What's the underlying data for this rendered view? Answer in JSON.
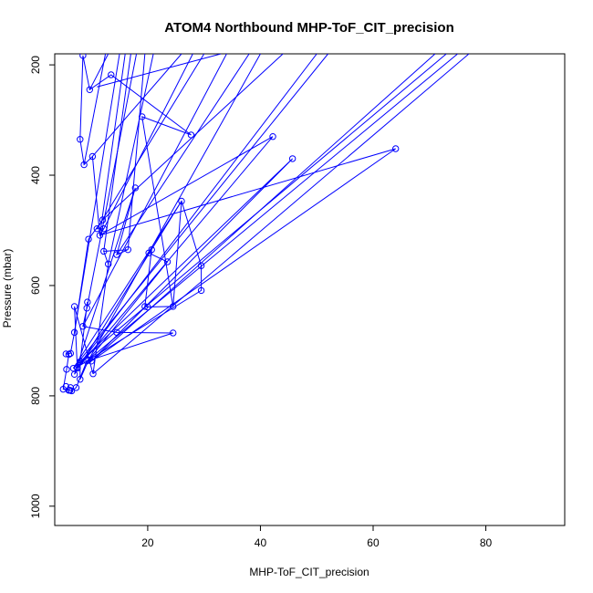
{
  "chart_data": {
    "type": "line",
    "title": "ATOM4 Northbound MHP-ToF_CIT_precision",
    "xlabel": "MHP-ToF_CIT_precision",
    "ylabel": "Pressure (mbar)",
    "xlim": [
      3.5,
      94
    ],
    "ylim": [
      1035,
      180
    ],
    "y_reversed": true,
    "x_ticks": [
      20,
      40,
      60,
      80
    ],
    "y_ticks": [
      200,
      400,
      600,
      800,
      1000
    ],
    "grid": false,
    "legend": "none",
    "colors": {
      "series": "#0000ff",
      "axis": "#000000"
    },
    "series": [
      {
        "points": [
          [
            8.5,
            183
          ],
          [
            13.5,
            218
          ],
          [
            9.7,
            245
          ],
          [
            19,
            294
          ],
          [
            27.7,
            327
          ],
          [
            42.2,
            330
          ],
          [
            8,
            335
          ],
          [
            64,
            352
          ],
          [
            45.7,
            370
          ],
          [
            8.7,
            381
          ],
          [
            10.2,
            366
          ],
          [
            17.8,
            423
          ],
          [
            26,
            447
          ],
          [
            12,
            481
          ],
          [
            11,
            497
          ],
          [
            12.2,
            497
          ],
          [
            11.5,
            509
          ],
          [
            9.5,
            516
          ],
          [
            20.7,
            535
          ],
          [
            16.5,
            535
          ],
          [
            12.2,
            538
          ],
          [
            20.2,
            541
          ],
          [
            14.5,
            544
          ],
          [
            23.5,
            557
          ],
          [
            13,
            561
          ],
          [
            29.5,
            564
          ],
          [
            29.5,
            609
          ],
          [
            9.3,
            630
          ],
          [
            7,
            638
          ],
          [
            19.5,
            638
          ],
          [
            20,
            639
          ],
          [
            24.5,
            638
          ],
          [
            9.2,
            641
          ],
          [
            8.5,
            674
          ],
          [
            7,
            685
          ],
          [
            14.5,
            685
          ],
          [
            24.5,
            686
          ],
          [
            6.3,
            723
          ],
          [
            5.5,
            724
          ],
          [
            6,
            725
          ],
          [
            9.5,
            735
          ],
          [
            8,
            738
          ],
          [
            10,
            737
          ],
          [
            9.2,
            737
          ],
          [
            7.5,
            748
          ],
          [
            7.5,
            750
          ],
          [
            6.8,
            750
          ],
          [
            5.6,
            752
          ],
          [
            10.3,
            760
          ],
          [
            7,
            761
          ],
          [
            8,
            770
          ],
          [
            7.3,
            785
          ],
          [
            5.5,
            783
          ],
          [
            6.3,
            785
          ],
          [
            6,
            790
          ],
          [
            6.2,
            790
          ],
          [
            6.5,
            791
          ],
          [
            5,
            788
          ]
        ],
        "line_path": [
          [
            24.5,
            638
          ],
          [
            19,
            294
          ],
          [
            27.7,
            327
          ],
          [
            13.5,
            218
          ],
          [
            9.7,
            245
          ],
          [
            8.5,
            183
          ],
          [
            8,
            335
          ],
          [
            8.7,
            381
          ],
          [
            10.2,
            366
          ],
          [
            11.5,
            509
          ],
          [
            12.2,
            497
          ],
          [
            11,
            497
          ],
          [
            12,
            481
          ],
          [
            9.5,
            516
          ],
          [
            7,
            685
          ],
          [
            6.3,
            723
          ],
          [
            5.5,
            724
          ],
          [
            6,
            725
          ],
          [
            5.6,
            752
          ],
          [
            5,
            788
          ],
          [
            6.2,
            790
          ],
          [
            6.5,
            791
          ],
          [
            7.3,
            785
          ],
          [
            9.2,
            737
          ],
          [
            10,
            737
          ],
          [
            9.5,
            735
          ],
          [
            8,
            770
          ],
          [
            8,
            738
          ],
          [
            9.3,
            630
          ],
          [
            9.2,
            641
          ],
          [
            8.5,
            674
          ],
          [
            14.5,
            685
          ],
          [
            24.5,
            686
          ],
          [
            9.2,
            737
          ],
          [
            7.5,
            748
          ],
          [
            7,
            638
          ],
          [
            10.3,
            760
          ],
          [
            13,
            561
          ],
          [
            12.2,
            538
          ],
          [
            16.5,
            535
          ],
          [
            14.5,
            544
          ],
          [
            17.8,
            423
          ],
          [
            7,
            761
          ],
          [
            26,
            447
          ],
          [
            29.5,
            564
          ],
          [
            29.5,
            609
          ],
          [
            9.5,
            735
          ],
          [
            23.5,
            557
          ],
          [
            20.2,
            541
          ],
          [
            20.7,
            535
          ],
          [
            19.5,
            638
          ],
          [
            20,
            639
          ],
          [
            24.5,
            638
          ],
          [
            26,
            447
          ],
          [
            6.8,
            750
          ],
          [
            45.7,
            370
          ],
          [
            10,
            737
          ],
          [
            64,
            352
          ],
          [
            11.5,
            509
          ],
          [
            42.2,
            330
          ],
          [
            7.5,
            750
          ]
        ],
        "offscreen_segments": [
          [
            [
              10.3,
              760
            ],
            [
              77,
              180
            ]
          ],
          [
            [
              9.2,
              737
            ],
            [
              75,
              180
            ]
          ],
          [
            [
              8,
              738
            ],
            [
              73,
              180
            ]
          ],
          [
            [
              10,
              737
            ],
            [
              71,
              180
            ]
          ],
          [
            [
              6.8,
              750
            ],
            [
              52,
              180
            ]
          ],
          [
            [
              7.5,
              748
            ],
            [
              50,
              180
            ]
          ],
          [
            [
              9.5,
              735
            ],
            [
              40,
              180
            ]
          ],
          [
            [
              8.5,
              674
            ],
            [
              34,
              180
            ]
          ],
          [
            [
              11,
              497
            ],
            [
              30,
              180
            ]
          ],
          [
            [
              12,
              481
            ],
            [
              44,
              180
            ]
          ],
          [
            [
              14.5,
              544
            ],
            [
              38,
              180
            ]
          ],
          [
            [
              12.2,
              497
            ],
            [
              28,
              180
            ]
          ],
          [
            [
              10.2,
              366
            ],
            [
              26,
              180
            ]
          ],
          [
            [
              13,
              561
            ],
            [
              21,
              180
            ]
          ],
          [
            [
              12.2,
              538
            ],
            [
              17,
              180
            ]
          ],
          [
            [
              16.5,
              535
            ],
            [
              19.5,
              180
            ]
          ],
          [
            [
              9.2,
              641
            ],
            [
              18,
              180
            ]
          ],
          [
            [
              11.5,
              509
            ],
            [
              16,
              180
            ]
          ],
          [
            [
              7,
              685
            ],
            [
              15,
              180
            ]
          ],
          [
            [
              11,
              240
            ],
            [
              33,
              180
            ]
          ],
          [
            [
              9.7,
              245
            ],
            [
              13,
              180
            ]
          ],
          [
            [
              8.7,
              381
            ],
            [
              12.5,
              180
            ]
          ]
        ]
      }
    ]
  }
}
